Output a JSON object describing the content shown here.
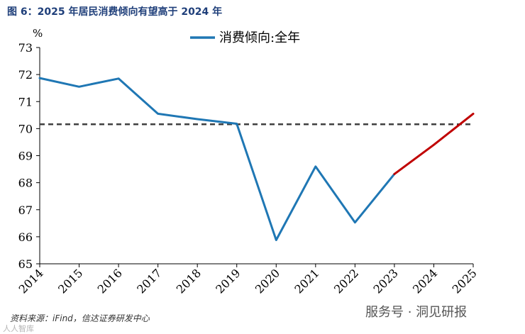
{
  "figure": {
    "title": "图 6：2025 年居民消费倾向有望高于 2024 年",
    "source": "资料来源：iFind，信达证券研发中心",
    "watermark": "服务号 · 洞见研报",
    "watermark_corner": "人人智库"
  },
  "chart_data": {
    "type": "line",
    "title": "",
    "xlabel": "",
    "ylabel": "%",
    "categories": [
      "2014",
      "2015",
      "2016",
      "2017",
      "2018",
      "2019",
      "2020",
      "2021",
      "2022",
      "2023",
      "2024",
      "2025"
    ],
    "ylim": [
      65,
      73
    ],
    "yticks": [
      65,
      66,
      67,
      68,
      69,
      70,
      71,
      72,
      73
    ],
    "grid": false,
    "legend_position": "top-center",
    "series": [
      {
        "name": "消费倾向:全年",
        "color": "#1f77b4",
        "values": [
          71.87,
          71.55,
          71.85,
          70.55,
          70.35,
          70.18,
          65.88,
          68.6,
          66.53,
          68.32,
          null,
          null
        ]
      },
      {
        "name": "",
        "color": "#c00000",
        "values": [
          null,
          null,
          null,
          null,
          null,
          null,
          null,
          null,
          null,
          68.32,
          69.4,
          70.55
        ]
      }
    ],
    "reference_line": {
      "value": 70.16,
      "style": "dashed",
      "color": "#404040"
    }
  }
}
